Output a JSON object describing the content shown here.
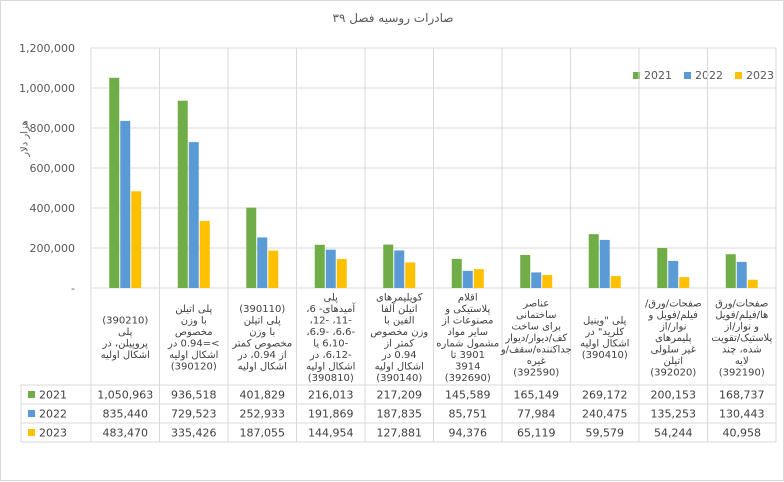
{
  "chart_data": {
    "type": "bar",
    "title": "صادرات روسیه فصل ۳۹",
    "ylabel": "هزار دلار",
    "ylim": [
      0,
      1200000
    ],
    "yticks": [
      "-",
      "200,000",
      "400,000",
      "600,000",
      "800,000",
      "1,000,000",
      "1,200,000"
    ],
    "grid": true,
    "legend_position": "top-right",
    "categories": [
      "(390210) پلی پروپیلن، در اشکال اولیه",
      "پلی اتیلن با وزن مخصوص >=0.94 در اشکال اولیه (390120)",
      "(390110) پلی اتیلن با وزن مخصوص کمتر از 0.94، در اشکال اولیه",
      "پلی آمیدهای- 6، -11، -12، -6،6، -6،9، -6،10 یا -6،12، در اشکال اولیه (390810)",
      "کوپلیمرهای اتیلن آلفا الفین با وزن مخصوص کمتر از 0.94 در اشکال اولیه (390140)",
      "اقلام پلاستیکی و مصنوعات از سایر مواد مشمول شماره 3901 تا 3914 (392690)",
      "عناصر ساختمانی برای ساخت کف/دیوار/دیوار جداکننده/سقف/و غیره (392590)",
      "پلی \"وینیل کلرید\" در اشکال اولیه (390410)",
      "صفحات/ورق/ فیلم/فویل و نوار/از پلیمرهای غیر سلولی اتیلن (392020)",
      "صفحات/ورق ها/فیلم/فویل و نوار/از پلاستیک/تقویت شده، چند لایه (392190)"
    ],
    "series": [
      {
        "name": "2021",
        "color": "#70ad47",
        "values": [
          1050963,
          936518,
          401829,
          216013,
          217209,
          145589,
          165149,
          269172,
          200153,
          168737
        ],
        "labels": [
          "1,050,963",
          "936,518",
          "401,829",
          "216,013",
          "217,209",
          "145,589",
          "165,149",
          "269,172",
          "200,153",
          "168,737"
        ]
      },
      {
        "name": "2022",
        "color": "#5b9bd5",
        "values": [
          835440,
          729523,
          252933,
          191869,
          187835,
          85751,
          77984,
          240475,
          135253,
          130443
        ],
        "labels": [
          "835,440",
          "729,523",
          "252,933",
          "191,869",
          "187,835",
          "85,751",
          "77,984",
          "240,475",
          "135,253",
          "130,443"
        ]
      },
      {
        "name": "2023",
        "color": "#ffc000",
        "values": [
          483470,
          335426,
          187055,
          144954,
          127881,
          94376,
          65119,
          59579,
          54244,
          40958
        ],
        "labels": [
          "483,470",
          "335,426",
          "187,055",
          "144,954",
          "127,881",
          "94,376",
          "65,119",
          "59,579",
          "54,244",
          "40,958"
        ]
      }
    ]
  }
}
